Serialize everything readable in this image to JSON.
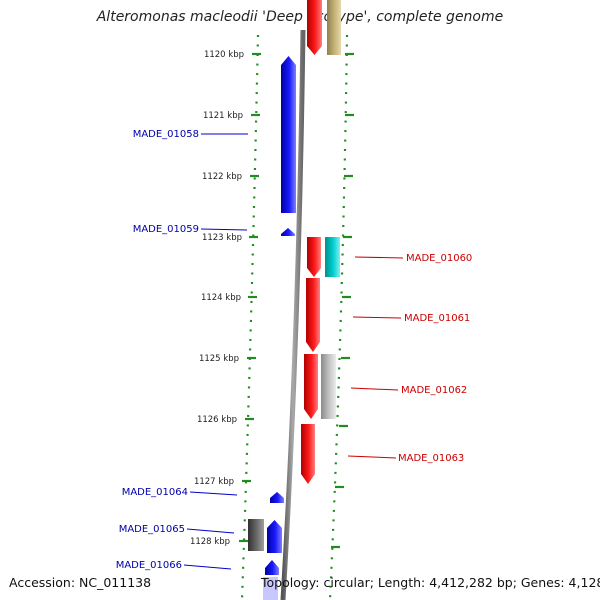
{
  "title": "Alteromonas macleodii 'Deep ecotype', complete genome",
  "footer": {
    "accession": "Accession: NC_011138",
    "topology": "Topology: circular; Length: 4,412,282 bp; Genes: 4,128"
  },
  "colors": {
    "forward_gene": "#ff0000",
    "reverse_gene": "#0000ff",
    "forward_label": "#cc0000",
    "reverse_label": "#0000aa",
    "backbone": "#808080",
    "tick_dots": "#228b22"
  },
  "ruler": [
    {
      "label": "1120 kbp"
    },
    {
      "label": "1121 kbp"
    },
    {
      "label": "1122 kbp"
    },
    {
      "label": "1123 kbp"
    },
    {
      "label": "1124 kbp"
    },
    {
      "label": "1125 kbp"
    },
    {
      "label": "1126 kbp"
    },
    {
      "label": "1127 kbp"
    },
    {
      "label": "1128 kbp"
    }
  ],
  "gene_labels": [
    {
      "name": "MADE_01058",
      "strand": "reverse"
    },
    {
      "name": "MADE_01059",
      "strand": "reverse"
    },
    {
      "name": "MADE_01060",
      "strand": "forward"
    },
    {
      "name": "MADE_01061",
      "strand": "forward"
    },
    {
      "name": "MADE_01062",
      "strand": "forward"
    },
    {
      "name": "MADE_01063",
      "strand": "forward"
    },
    {
      "name": "MADE_01064",
      "strand": "reverse"
    },
    {
      "name": "MADE_01065",
      "strand": "reverse"
    },
    {
      "name": "MADE_01066",
      "strand": "reverse"
    }
  ]
}
